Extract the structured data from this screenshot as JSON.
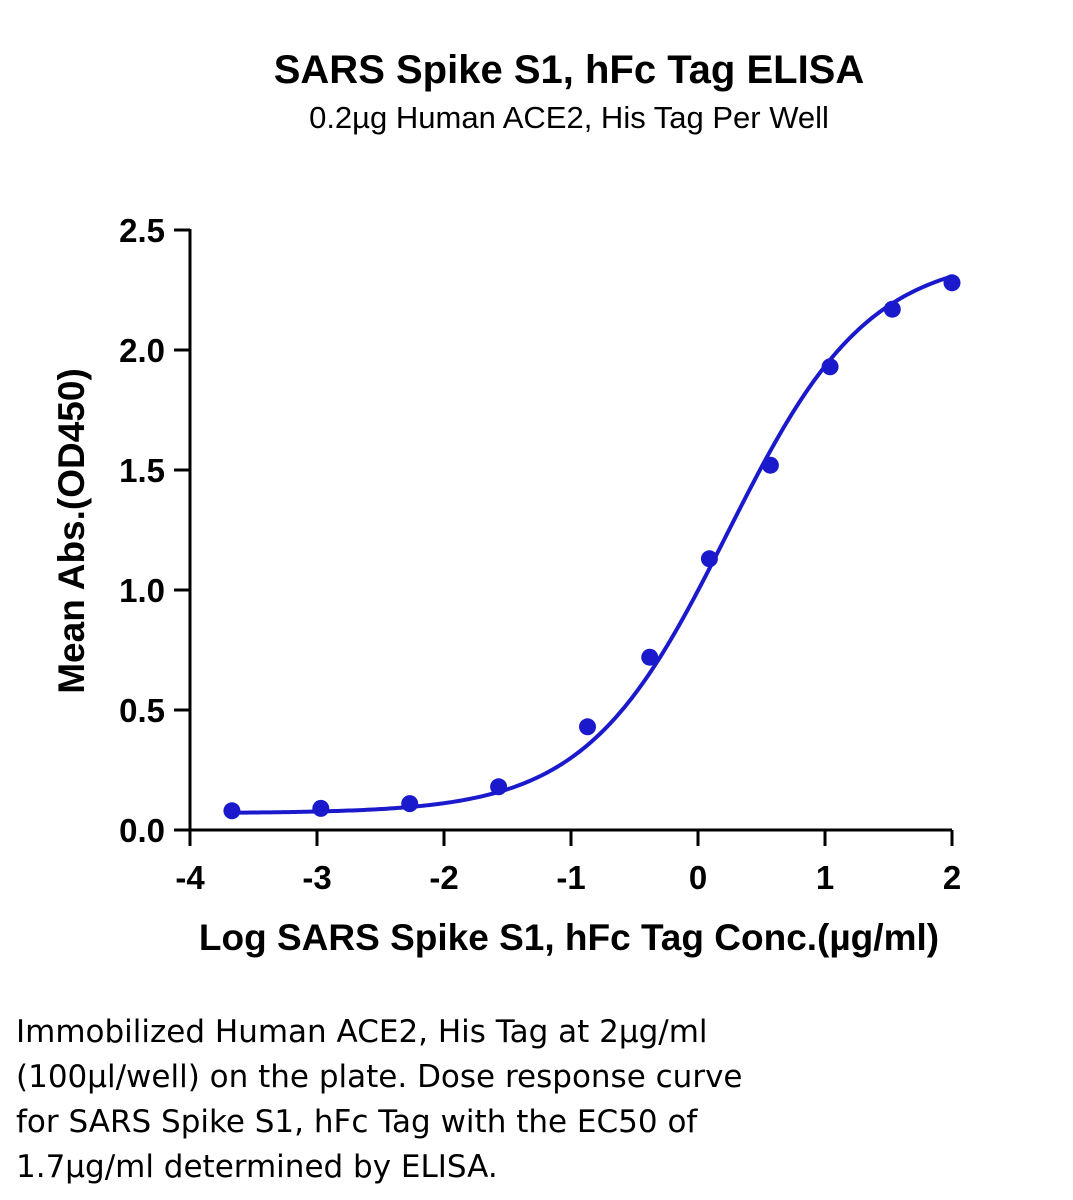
{
  "chart_data": {
    "type": "scatter",
    "title": "SARS Spike S1, hFc Tag ELISA",
    "subtitle": "0.2µg Human ACE2, His Tag Per Well",
    "xlabel": "Log SARS Spike S1, hFc Tag Conc.(µg/ml)",
    "ylabel": "Mean Abs.(OD450)",
    "xlim": [
      -4,
      2
    ],
    "ylim": [
      0,
      2.5
    ],
    "x_ticks": [
      "-4",
      "-3",
      "-2",
      "-1",
      "0",
      "1",
      "2"
    ],
    "y_ticks": [
      "0.0",
      "0.5",
      "1.0",
      "1.5",
      "2.0",
      "2.5"
    ],
    "grid": false,
    "legend": "none",
    "colors": {
      "series": "#1a1acc",
      "axis": "#000000"
    },
    "series": [
      {
        "points": [
          {
            "x": -3.67,
            "y": 0.08
          },
          {
            "x": -2.97,
            "y": 0.09
          },
          {
            "x": -2.27,
            "y": 0.11
          },
          {
            "x": -1.57,
            "y": 0.18
          },
          {
            "x": -0.87,
            "y": 0.43
          },
          {
            "x": -0.38,
            "y": 0.72
          },
          {
            "x": 0.09,
            "y": 1.13
          },
          {
            "x": 0.57,
            "y": 1.52
          },
          {
            "x": 1.04,
            "y": 1.93
          },
          {
            "x": 1.53,
            "y": 2.17
          },
          {
            "x": 2.0,
            "y": 2.28
          }
        ],
        "fit": {
          "model": "4PL",
          "bottom": 0.07,
          "top": 2.4,
          "logEC50": 0.23,
          "hill": 0.78
        }
      }
    ]
  },
  "caption": {
    "lines": [
      "Immobilized Human ACE2, His Tag at 2µg/ml",
      "(100µl/well) on the plate. Dose response curve",
      "for SARS Spike S1, hFc Tag with the EC50 of",
      "1.7µg/ml determined by ELISA."
    ]
  }
}
